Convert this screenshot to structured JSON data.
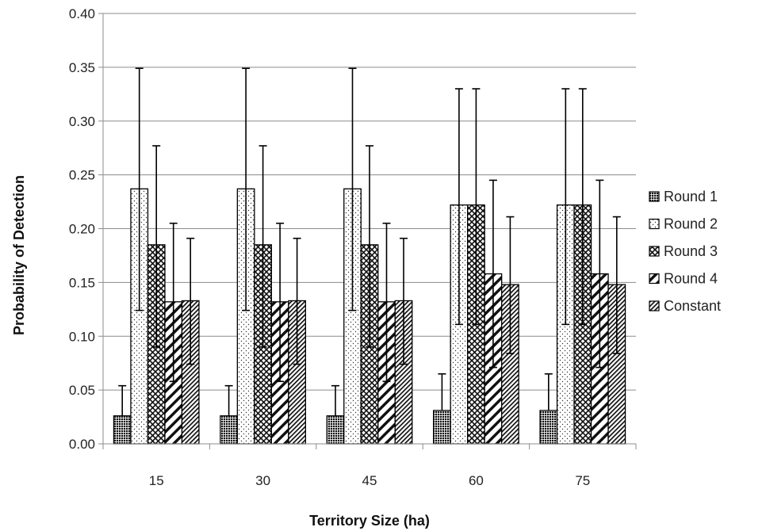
{
  "chart_data": {
    "type": "bar",
    "title": "",
    "xlabel": "Territory Size (ha)",
    "ylabel": "Probability of Detection",
    "categories": [
      "15",
      "30",
      "45",
      "60",
      "75"
    ],
    "ylim": [
      0,
      0.4
    ],
    "yticks": [
      "0.00",
      "0.05",
      "0.10",
      "0.15",
      "0.20",
      "0.25",
      "0.30",
      "0.35",
      "0.40"
    ],
    "grid": true,
    "legend_position": "right",
    "error_bars": true,
    "series": [
      {
        "name": "Round 1",
        "pattern": "dense-dots",
        "values": [
          0.026,
          0.026,
          0.026,
          0.031,
          0.031
        ],
        "upper": [
          0.054,
          0.054,
          0.054,
          0.065,
          0.065
        ]
      },
      {
        "name": "Round 2",
        "pattern": "sparse-dots",
        "values": [
          0.237,
          0.237,
          0.237,
          0.222,
          0.222
        ],
        "lower": [
          0.124,
          0.124,
          0.124,
          0.111,
          0.111
        ],
        "upper": [
          0.349,
          0.349,
          0.349,
          0.33,
          0.33
        ]
      },
      {
        "name": "Round 3",
        "pattern": "crosshatch",
        "values": [
          0.185,
          0.185,
          0.185,
          0.222,
          0.222
        ],
        "lower": [
          0.09,
          0.09,
          0.09,
          0.111,
          0.111
        ],
        "upper": [
          0.277,
          0.277,
          0.277,
          0.33,
          0.33
        ]
      },
      {
        "name": "Round 4",
        "pattern": "wide-diagonal",
        "values": [
          0.132,
          0.132,
          0.132,
          0.158,
          0.158
        ],
        "lower": [
          0.058,
          0.058,
          0.058,
          0.071,
          0.071
        ],
        "upper": [
          0.205,
          0.205,
          0.205,
          0.245,
          0.245
        ]
      },
      {
        "name": "Constant",
        "pattern": "narrow-diagonal",
        "values": [
          0.133,
          0.133,
          0.133,
          0.148,
          0.148
        ],
        "lower": [
          0.074,
          0.074,
          0.074,
          0.084,
          0.084
        ],
        "upper": [
          0.191,
          0.191,
          0.191,
          0.211,
          0.211
        ]
      }
    ]
  }
}
